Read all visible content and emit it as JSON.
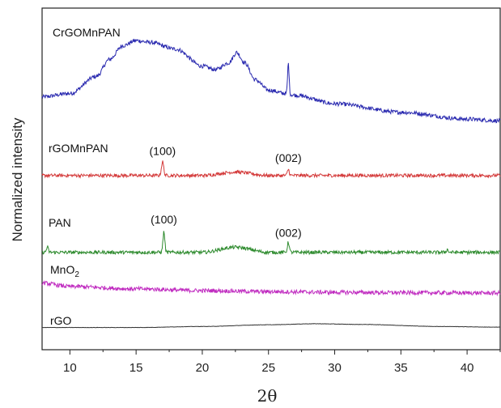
{
  "chart_data": {
    "type": "line",
    "title": "",
    "xlabel": "2θ",
    "ylabel": "Normalized intensity",
    "xlim": [
      7.9,
      42.5
    ],
    "ylim": [
      0,
      100
    ],
    "x_ticks": [
      10,
      15,
      20,
      25,
      30,
      35,
      40
    ],
    "grid": false,
    "legend": "none",
    "series": [
      {
        "name": "CrGOMnPAN",
        "color": "#2b2bb0",
        "baseline": [
          [
            7.9,
            74
          ],
          [
            10,
            75
          ],
          [
            12,
            80
          ],
          [
            13,
            85
          ],
          [
            14,
            89
          ],
          [
            15,
            90.5
          ],
          [
            16,
            90
          ],
          [
            18,
            88
          ],
          [
            20,
            83
          ],
          [
            21,
            82
          ],
          [
            22,
            84
          ],
          [
            22.6,
            87
          ],
          [
            23.2,
            84
          ],
          [
            24,
            79
          ],
          [
            25,
            76
          ],
          [
            26.3,
            75
          ],
          [
            27,
            74.5
          ],
          [
            30,
            72
          ],
          [
            35,
            69.5
          ],
          [
            40,
            67.5
          ],
          [
            42.5,
            67
          ]
        ],
        "peaks": [
          {
            "x": 26.5,
            "height": 9,
            "width": 0.08
          }
        ],
        "noise": 0.6
      },
      {
        "name": "rGOMnPAN",
        "color": "#d43a3a",
        "label_html": "rGOMnPAN",
        "baseline": [
          [
            7.9,
            51
          ],
          [
            10,
            51
          ],
          [
            15,
            51
          ],
          [
            20,
            51
          ],
          [
            22.5,
            52
          ],
          [
            25,
            51
          ],
          [
            30,
            51
          ],
          [
            35,
            51
          ],
          [
            42.5,
            51
          ]
        ],
        "peaks": [
          {
            "x": 17.0,
            "height": 4,
            "width": 0.12
          },
          {
            "x": 26.5,
            "height": 1.8,
            "width": 0.1
          }
        ],
        "noise": 0.5
      },
      {
        "name": "PAN",
        "color": "#2e8b2e",
        "baseline": [
          [
            7.9,
            28.5
          ],
          [
            10,
            28.5
          ],
          [
            15,
            28.5
          ],
          [
            20,
            28.5
          ],
          [
            22.5,
            30
          ],
          [
            25,
            28.5
          ],
          [
            30,
            28.5
          ],
          [
            42.5,
            28.5
          ]
        ],
        "peaks": [
          {
            "x": 8.3,
            "height": 1.5,
            "width": 0.1
          },
          {
            "x": 17.1,
            "height": 6,
            "width": 0.1
          },
          {
            "x": 26.5,
            "height": 3,
            "width": 0.1
          },
          {
            "x": 38.5,
            "height": 0.8,
            "width": 0.1
          }
        ],
        "noise": 0.5
      },
      {
        "name": "MnO2",
        "color": "#c02cc0",
        "baseline": [
          [
            7.9,
            19.5
          ],
          [
            10,
            18.5
          ],
          [
            15,
            17.8
          ],
          [
            20,
            17.3
          ],
          [
            25,
            17
          ],
          [
            30,
            16.8
          ],
          [
            35,
            16.7
          ],
          [
            42.5,
            16.6
          ]
        ],
        "peaks": [],
        "noise": 0.6
      },
      {
        "name": "rGO",
        "color": "#333333",
        "baseline": [
          [
            7.9,
            6.5
          ],
          [
            15,
            6.5
          ],
          [
            20,
            6.8
          ],
          [
            25,
            7.3
          ],
          [
            28.5,
            7.6
          ],
          [
            32,
            7.4
          ],
          [
            38,
            6.8
          ],
          [
            42.5,
            6.6
          ]
        ],
        "peaks": [],
        "noise": 0.05
      }
    ],
    "series_labels": [
      {
        "series": "CrGOMnPAN",
        "text": "CrGOMnPAN"
      },
      {
        "series": "rGOMnPAN",
        "text": "rGOMnPAN"
      },
      {
        "series": "PAN",
        "text": "PAN"
      },
      {
        "series": "MnO2",
        "text": "MnO",
        "subscript": "2"
      },
      {
        "series": "rGO",
        "text": "rGO"
      }
    ],
    "annotations": [
      {
        "text": "(100)",
        "x": 17.0,
        "y": 57
      },
      {
        "text": "(002)",
        "x": 26.5,
        "y": 55
      },
      {
        "text": "(100)",
        "x": 17.1,
        "y": 37
      },
      {
        "text": "(002)",
        "x": 26.5,
        "y": 33
      }
    ]
  }
}
